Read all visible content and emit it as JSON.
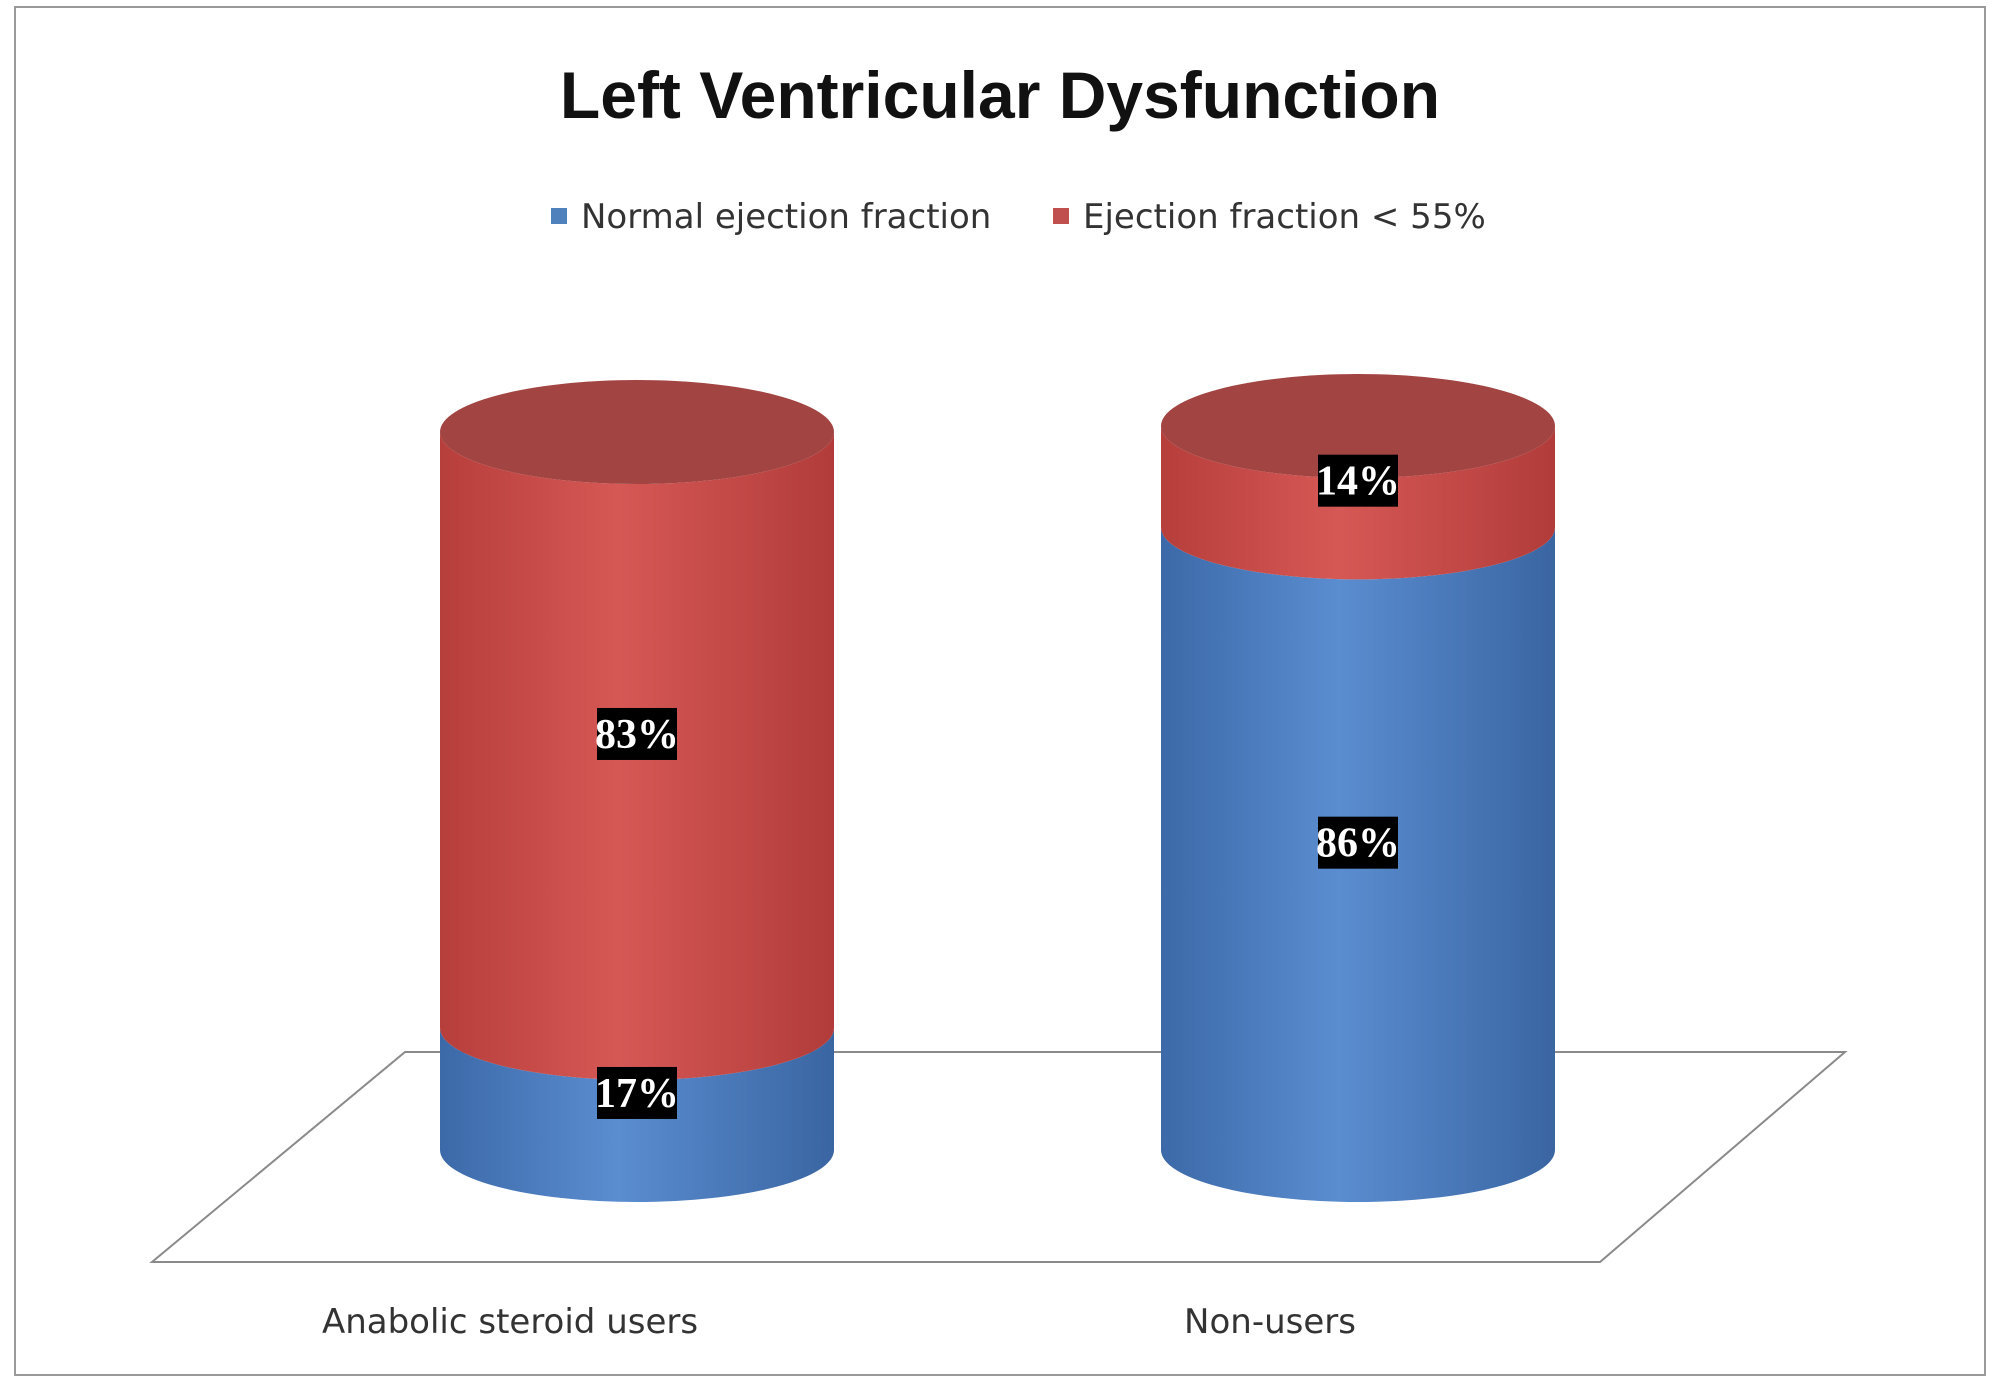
{
  "chart_data": {
    "type": "bar",
    "stacked": true,
    "percent_stacked": true,
    "three_d": true,
    "shape": "cylinder",
    "title": "Left Ventricular Dysfunction",
    "legend_position": "top",
    "categories": [
      "Anabolic steroid users",
      "Non-users"
    ],
    "series": [
      {
        "name": "Normal ejection fraction",
        "values": [
          17,
          86
        ],
        "labels": [
          "17%",
          "86%"
        ],
        "color": "#4f81bd"
      },
      {
        "name": "Ejection fraction < 55%",
        "values": [
          83,
          14
        ],
        "labels": [
          "83%",
          "14%"
        ],
        "color": "#c0504d"
      }
    ],
    "ylim": [
      0,
      100
    ],
    "grid": false,
    "data_label_background": "#000000",
    "data_label_color": "#ffffff"
  }
}
